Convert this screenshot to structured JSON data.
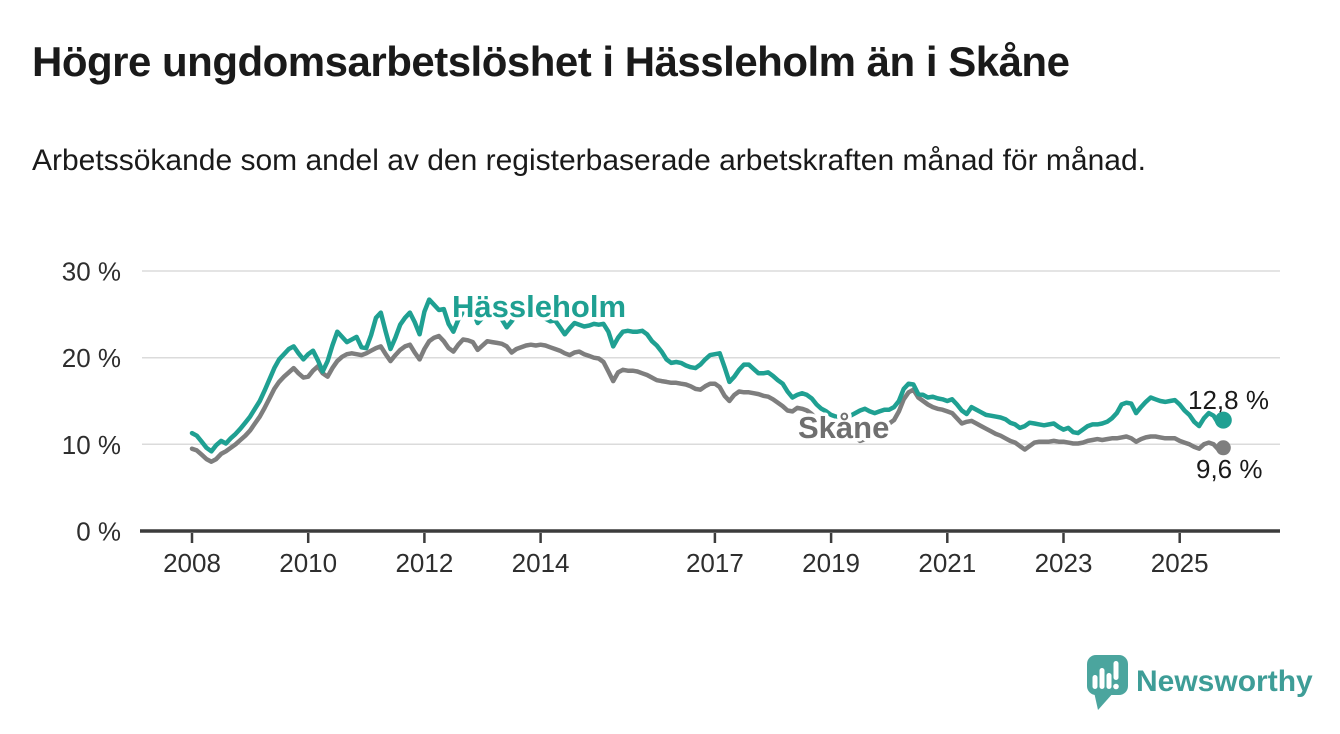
{
  "header": {
    "title": "Högre ungdomsarbetslöshet i Hässleholm än i Skåne",
    "subtitle": "Arbetssökande som andel av den registerbaserade arbetskraften månad för månad."
  },
  "chart_data": {
    "type": "line",
    "x_unit": "month",
    "x_start": {
      "year": 2008,
      "month": 1
    },
    "x_end": {
      "year": 2025,
      "month": 10
    },
    "x_ticks": [
      "2008",
      "2010",
      "2012",
      "2014",
      "2017",
      "2019",
      "2021",
      "2023",
      "2025"
    ],
    "y_ticks": [
      {
        "value": 0,
        "label": "0 %"
      },
      {
        "value": 10,
        "label": "10 %"
      },
      {
        "value": 20,
        "label": "20 %"
      },
      {
        "value": 30,
        "label": "30 %"
      }
    ],
    "ylim": [
      0,
      33
    ],
    "grid": "horizontal",
    "legend_position": "inline-labels",
    "series": [
      {
        "name": "Hässleholm",
        "slug": "hassleholm",
        "color": "#1fa092",
        "end_label": "12,8 %",
        "end_value": 12.8,
        "values": [
          11.3,
          11.0,
          10.3,
          9.6,
          9.2,
          9.9,
          10.4,
          10.1,
          10.7,
          11.2,
          11.8,
          12.5,
          13.2,
          14.1,
          15.0,
          16.2,
          17.5,
          18.8,
          19.8,
          20.4,
          21.0,
          21.3,
          20.5,
          19.8,
          20.4,
          20.8,
          19.7,
          18.4,
          19.6,
          21.4,
          23.0,
          22.4,
          21.8,
          22.1,
          22.4,
          21.2,
          21.1,
          22.6,
          24.6,
          25.2,
          23.0,
          21.0,
          22.3,
          23.8,
          24.6,
          25.2,
          24.1,
          22.7,
          25.3,
          26.7,
          26.1,
          25.5,
          25.6,
          23.9,
          23.0,
          24.4,
          25.3,
          25.6,
          25.4,
          24.0,
          24.6,
          25.2,
          25.4,
          25.1,
          24.4,
          23.5,
          24.2,
          25.0,
          25.2,
          24.9,
          24.7,
          24.8,
          24.8,
          24.5,
          24.2,
          24.3,
          23.5,
          22.7,
          23.4,
          24.0,
          23.8,
          23.6,
          23.7,
          23.9,
          23.8,
          23.9,
          23.0,
          21.3,
          22.3,
          23.0,
          23.1,
          23.0,
          23.0,
          23.1,
          22.7,
          21.9,
          21.4,
          20.7,
          19.8,
          19.4,
          19.5,
          19.4,
          19.1,
          18.9,
          18.8,
          19.2,
          19.8,
          20.3,
          20.4,
          20.5,
          18.9,
          17.2,
          17.8,
          18.6,
          19.2,
          19.2,
          18.7,
          18.2,
          18.2,
          18.3,
          17.9,
          17.4,
          17.0,
          16.1,
          15.4,
          15.7,
          15.9,
          15.7,
          15.3,
          14.6,
          14.1,
          13.8,
          13.4,
          13.2,
          13.0,
          12.9,
          13.3,
          13.6,
          13.9,
          14.1,
          13.8,
          13.6,
          13.8,
          14.0,
          14.0,
          14.3,
          15.0,
          16.4,
          17.0,
          16.9,
          15.8,
          15.7,
          15.4,
          15.5,
          15.3,
          15.2,
          15.0,
          15.2,
          14.6,
          13.9,
          13.5,
          14.3,
          14.0,
          13.7,
          13.4,
          13.3,
          13.2,
          13.1,
          12.9,
          12.5,
          12.3,
          11.9,
          12.1,
          12.5,
          12.4,
          12.3,
          12.2,
          12.3,
          12.4,
          12.0,
          11.7,
          11.9,
          11.4,
          11.3,
          11.7,
          12.1,
          12.3,
          12.3,
          12.4,
          12.6,
          13.0,
          13.6,
          14.6,
          14.8,
          14.7,
          13.6,
          14.3,
          14.9,
          15.4,
          15.2,
          15.0,
          14.9,
          15.0,
          15.1,
          14.6,
          13.9,
          13.4,
          12.6,
          12.1,
          13.0,
          13.6,
          13.3,
          12.4,
          12.8
        ]
      },
      {
        "name": "Skåne",
        "slug": "skane",
        "color": "#7e7e7e",
        "label_color": "#6f6f6f",
        "end_label": "9,6 %",
        "end_value": 9.6,
        "values": [
          9.5,
          9.3,
          8.8,
          8.3,
          8.0,
          8.3,
          8.9,
          9.2,
          9.6,
          10.0,
          10.5,
          11.0,
          11.6,
          12.4,
          13.2,
          14.2,
          15.3,
          16.4,
          17.2,
          17.8,
          18.3,
          18.8,
          18.2,
          17.7,
          17.8,
          18.5,
          19.0,
          18.2,
          17.8,
          18.8,
          19.6,
          20.1,
          20.4,
          20.5,
          20.4,
          20.3,
          20.5,
          20.8,
          21.1,
          21.3,
          20.4,
          19.6,
          20.3,
          20.9,
          21.3,
          21.5,
          20.6,
          19.8,
          21.0,
          21.9,
          22.3,
          22.5,
          21.9,
          21.1,
          20.7,
          21.5,
          22.1,
          22.0,
          21.8,
          20.9,
          21.4,
          21.9,
          21.8,
          21.7,
          21.6,
          21.3,
          20.6,
          21.0,
          21.2,
          21.4,
          21.5,
          21.4,
          21.5,
          21.4,
          21.2,
          21.0,
          20.8,
          20.5,
          20.3,
          20.6,
          20.7,
          20.4,
          20.2,
          20.0,
          19.9,
          19.5,
          18.4,
          17.3,
          18.3,
          18.6,
          18.5,
          18.5,
          18.4,
          18.2,
          18.0,
          17.7,
          17.4,
          17.3,
          17.2,
          17.1,
          17.1,
          17.0,
          16.9,
          16.7,
          16.4,
          16.3,
          16.7,
          17.0,
          17.0,
          16.6,
          15.6,
          15.0,
          15.7,
          16.1,
          16.0,
          16.0,
          15.9,
          15.8,
          15.6,
          15.5,
          15.2,
          14.8,
          14.4,
          13.9,
          13.8,
          14.2,
          14.1,
          13.9,
          13.5,
          12.9,
          12.5,
          12.3,
          12.2,
          12.4,
          12.2,
          11.9,
          11.5,
          10.8,
          10.4,
          10.6,
          11.0,
          11.4,
          11.8,
          12.1,
          12.4,
          12.8,
          13.8,
          15.2,
          16.0,
          16.3,
          15.4,
          15.0,
          14.6,
          14.3,
          14.1,
          14.0,
          13.8,
          13.6,
          13.0,
          12.4,
          12.6,
          12.7,
          12.4,
          12.1,
          11.8,
          11.5,
          11.2,
          11.0,
          10.7,
          10.4,
          10.2,
          9.8,
          9.4,
          9.8,
          10.2,
          10.3,
          10.3,
          10.3,
          10.4,
          10.3,
          10.3,
          10.2,
          10.1,
          10.1,
          10.2,
          10.4,
          10.5,
          10.6,
          10.5,
          10.6,
          10.7,
          10.7,
          10.8,
          10.9,
          10.7,
          10.3,
          10.6,
          10.8,
          10.9,
          10.9,
          10.8,
          10.7,
          10.7,
          10.7,
          10.4,
          10.2,
          10.0,
          9.7,
          9.5,
          10.0,
          10.2,
          10.0,
          9.4,
          9.6
        ]
      }
    ]
  },
  "footer": {
    "brand": "Newsworthy",
    "brand_color": "#3e9d97",
    "icon_color": "#4ba59e",
    "icon": "bar-chart-speech-bubble"
  }
}
